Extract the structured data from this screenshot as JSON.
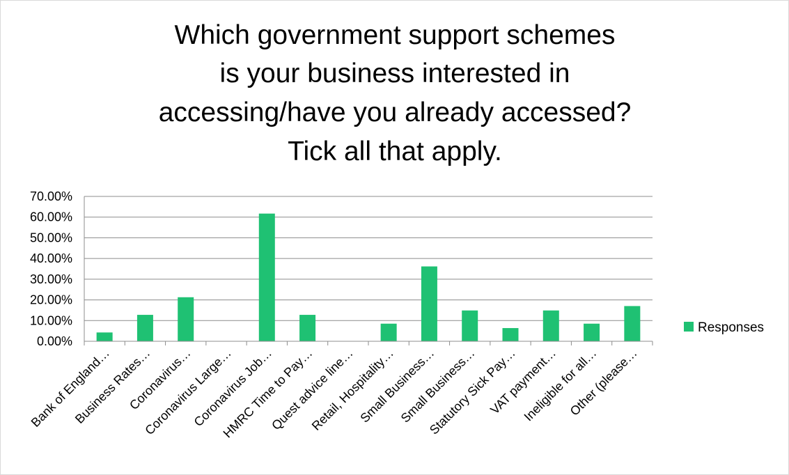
{
  "chart_data": {
    "type": "bar",
    "title_lines": [
      "Which government support schemes",
      "is your business interested in",
      "accessing/have you already accessed?",
      "Tick all that apply."
    ],
    "categories": [
      "Bank of England…",
      "Business Rates…",
      "Coronavirus…",
      "Coronavirus Large…",
      "Coronavirus Job…",
      "HMRC Time to Pay…",
      "Quest advice line…",
      "Retail, Hospitality…",
      "Small Business…",
      "Small Business…",
      "Statutory Sick Pay…",
      "VAT payment…",
      "Ineligible for all…",
      "Other (please…"
    ],
    "series": [
      {
        "name": "Responses",
        "color": "#1fc173",
        "values": [
          0.0426,
          0.1277,
          0.2128,
          0.0,
          0.617,
          0.1277,
          0.0,
          0.0851,
          0.3617,
          0.1489,
          0.0638,
          0.1489,
          0.0851,
          0.1702
        ]
      }
    ],
    "ylim": [
      0,
      0.7
    ],
    "yticks": [
      "0.00%",
      "10.00%",
      "20.00%",
      "30.00%",
      "40.00%",
      "50.00%",
      "60.00%",
      "70.00%"
    ],
    "grid": true,
    "legend_position": "right"
  }
}
